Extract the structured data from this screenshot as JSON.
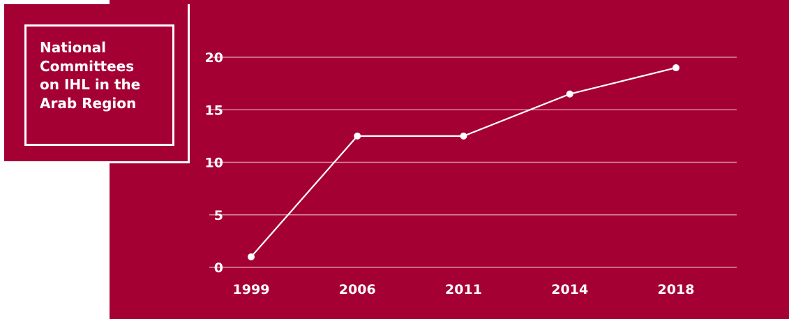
{
  "colors": {
    "background": "#a50034",
    "grid": "#d98c9e",
    "line": "#ffffff",
    "text": "#ffffff"
  },
  "chart_data": {
    "type": "line",
    "title": "National\nCommittees\non IHL in the\nArab Region",
    "xlabel": "",
    "ylabel": "",
    "categories": [
      "1999",
      "2006",
      "2011",
      "2014",
      "2018"
    ],
    "series": [
      {
        "values": [
          1,
          12.5,
          12.5,
          16.5,
          19
        ]
      }
    ],
    "ylim": [
      0,
      20
    ],
    "yticks": [
      "0",
      "5",
      "10",
      "15",
      "20"
    ],
    "grid": true,
    "legend": "none"
  }
}
